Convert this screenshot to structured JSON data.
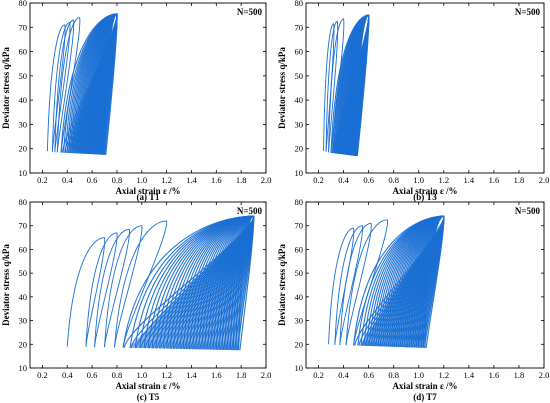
{
  "chart_data": [
    {
      "type": "line",
      "panel": "(a) T1",
      "annotation": "N=500",
      "xlabel": "Axial strain ε /%",
      "ylabel": "Deviator stress q/kPa",
      "xlim": [
        0.1,
        2.0
      ],
      "ylim": [
        10,
        80
      ],
      "xticks": [
        "0.2",
        "0.4",
        "0.6",
        "0.8",
        "1.0",
        "1.2",
        "1.4",
        "1.6",
        "1.8",
        "2.0"
      ],
      "yticks": [
        "10",
        "20",
        "30",
        "40",
        "50",
        "60",
        "70",
        "80"
      ],
      "color": "#1a6fd4",
      "series": [
        {
          "loading_start": {
            "x": 0.24,
            "y": 19
          },
          "loop_bottom_left": [
            {
              "x": 0.24,
              "y": 19
            },
            {
              "x": 0.28,
              "y": 18.8
            },
            {
              "x": 0.3,
              "y": 18.6
            },
            {
              "x": 0.32,
              "y": 18.5
            },
            {
              "x": 0.35,
              "y": 18.4
            }
          ],
          "loop_peaks": [
            {
              "x": 0.38,
              "y": 71
            },
            {
              "x": 0.42,
              "y": 72
            },
            {
              "x": 0.45,
              "y": 73
            },
            {
              "x": 0.5,
              "y": 74
            },
            {
              "x": 0.8,
              "y": 75.5
            }
          ],
          "final_min": {
            "x": 0.7,
            "y": 17.5
          },
          "final_max": {
            "x": 0.8,
            "y": 75.5
          }
        }
      ]
    },
    {
      "type": "line",
      "panel": "(b) T3",
      "annotation": "N=500",
      "xlabel": "Axial strain ε /%",
      "ylabel": "Deviator stress q/kPa",
      "xlim": [
        0.1,
        2.0
      ],
      "ylim": [
        10,
        80
      ],
      "xticks": [
        "0.2",
        "0.4",
        "0.6",
        "0.8",
        "1.0",
        "1.2",
        "1.4",
        "1.6",
        "1.8",
        "2.0"
      ],
      "yticks": [
        "10",
        "20",
        "30",
        "40",
        "50",
        "60",
        "70",
        "80"
      ],
      "color": "#1a6fd4",
      "series": [
        {
          "loading_start": {
            "x": 0.24,
            "y": 19
          },
          "loop_bottom_left": [
            {
              "x": 0.24,
              "y": 19
            },
            {
              "x": 0.26,
              "y": 18.7
            },
            {
              "x": 0.28,
              "y": 18.5
            },
            {
              "x": 0.3,
              "y": 18.3
            }
          ],
          "loop_peaks": [
            {
              "x": 0.32,
              "y": 71.5
            },
            {
              "x": 0.35,
              "y": 72.5
            },
            {
              "x": 0.4,
              "y": 73.5
            },
            {
              "x": 0.6,
              "y": 75
            }
          ],
          "final_min": {
            "x": 0.5,
            "y": 17.0
          },
          "final_max": {
            "x": 0.6,
            "y": 75
          }
        }
      ]
    },
    {
      "type": "line",
      "panel": "(c) T5",
      "annotation": "N=500",
      "xlabel": "Axial strain ε /%",
      "ylabel": "Deviator stress q/kPa",
      "xlim": [
        0.1,
        2.0
      ],
      "ylim": [
        10,
        80
      ],
      "xticks": [
        "0.2",
        "0.4",
        "0.6",
        "0.8",
        "1.0",
        "1.2",
        "1.4",
        "1.6",
        "1.8",
        "2.0"
      ],
      "yticks": [
        "10",
        "20",
        "30",
        "40",
        "50",
        "60",
        "70",
        "80"
      ],
      "color": "#1a6fd4",
      "series": [
        {
          "loading_start": {
            "x": 0.4,
            "y": 19
          },
          "loop_bottom_left": [
            {
              "x": 0.4,
              "y": 19
            },
            {
              "x": 0.55,
              "y": 19
            },
            {
              "x": 0.62,
              "y": 18.9
            },
            {
              "x": 0.7,
              "y": 18.8
            },
            {
              "x": 0.78,
              "y": 18.7
            },
            {
              "x": 0.85,
              "y": 18.6
            }
          ],
          "loop_peaks": [
            {
              "x": 0.7,
              "y": 65
            },
            {
              "x": 0.8,
              "y": 67
            },
            {
              "x": 0.9,
              "y": 68.5
            },
            {
              "x": 1.0,
              "y": 70
            },
            {
              "x": 1.2,
              "y": 72
            },
            {
              "x": 1.9,
              "y": 74
            }
          ],
          "final_min": {
            "x": 1.78,
            "y": 17.5
          },
          "final_max": {
            "x": 1.9,
            "y": 74
          }
        }
      ]
    },
    {
      "type": "line",
      "panel": "(d) T7",
      "annotation": "N=500",
      "xlabel": "Axial strain ε /%",
      "ylabel": "Deviator stress q/kPa",
      "xlim": [
        0.1,
        2.0
      ],
      "ylim": [
        10,
        80
      ],
      "xticks": [
        "0.2",
        "0.4",
        "0.6",
        "0.8",
        "1.0",
        "1.2",
        "1.4",
        "1.6",
        "1.8",
        "2.0"
      ],
      "yticks": [
        "10",
        "20",
        "30",
        "40",
        "50",
        "60",
        "70",
        "80"
      ],
      "color": "#1a6fd4",
      "series": [
        {
          "loading_start": {
            "x": 0.28,
            "y": 20
          },
          "loop_bottom_left": [
            {
              "x": 0.28,
              "y": 20
            },
            {
              "x": 0.33,
              "y": 19.8
            },
            {
              "x": 0.37,
              "y": 19.7
            },
            {
              "x": 0.42,
              "y": 19.6
            },
            {
              "x": 0.48,
              "y": 19.5
            }
          ],
          "loop_peaks": [
            {
              "x": 0.48,
              "y": 69
            },
            {
              "x": 0.55,
              "y": 70
            },
            {
              "x": 0.62,
              "y": 71
            },
            {
              "x": 0.75,
              "y": 72.5
            },
            {
              "x": 1.2,
              "y": 74
            }
          ],
          "final_min": {
            "x": 1.05,
            "y": 18.5
          },
          "final_max": {
            "x": 1.2,
            "y": 74
          }
        }
      ]
    }
  ]
}
